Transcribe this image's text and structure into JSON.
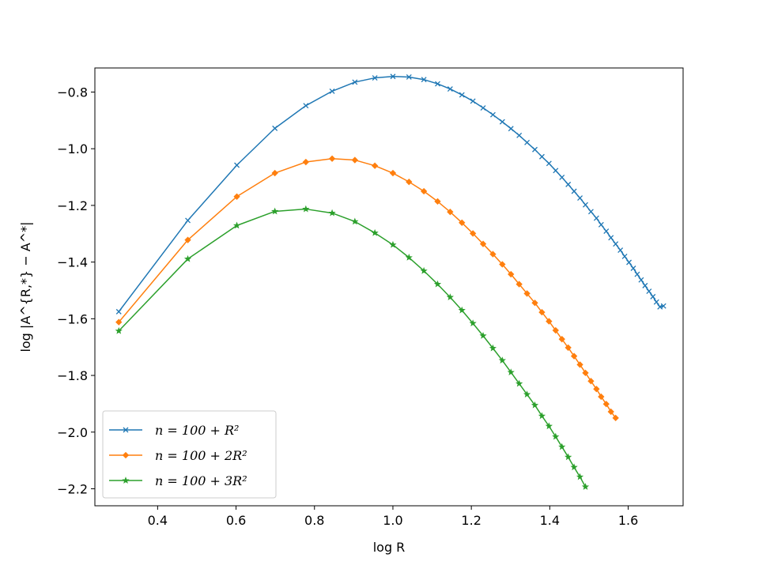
{
  "chart_data": {
    "type": "line",
    "xlabel": "log R",
    "ylabel": "log |A^{R,*} − A^*|",
    "xlim": [
      0.24,
      1.74
    ],
    "ylim": [
      -2.26,
      -0.715
    ],
    "xticks": [
      0.4,
      0.6,
      0.8,
      1.0,
      1.2,
      1.4,
      1.6
    ],
    "xtick_labels": [
      "0.4",
      "0.6",
      "0.8",
      "1.0",
      "1.2",
      "1.4",
      "1.6"
    ],
    "yticks": [
      -2.2,
      -2.0,
      -1.8,
      -1.6,
      -1.4,
      -1.2,
      -1.0,
      -0.8
    ],
    "ytick_labels": [
      "−2.2",
      "−2.0",
      "−1.8",
      "−1.6",
      "−1.4",
      "−1.2",
      "−1.0",
      "−0.8"
    ],
    "grid": false,
    "legend_position": "lower-left",
    "series": [
      {
        "name": "n = 100 + R²",
        "color": "#1f77b4",
        "marker": "x",
        "x": [
          0.301,
          0.477,
          0.602,
          0.699,
          0.778,
          0.845,
          0.903,
          0.954,
          1.0,
          1.041,
          1.079,
          1.114,
          1.146,
          1.176,
          1.204,
          1.23,
          1.255,
          1.279,
          1.301,
          1.322,
          1.342,
          1.362,
          1.38,
          1.398,
          1.415,
          1.431,
          1.447,
          1.462,
          1.477,
          1.491,
          1.505,
          1.519,
          1.531,
          1.544,
          1.556,
          1.568,
          1.58,
          1.591,
          1.602,
          1.613,
          1.623,
          1.633,
          1.643,
          1.653,
          1.663,
          1.672,
          1.681,
          1.69
        ],
        "y": [
          -1.575,
          -1.253,
          -1.058,
          -0.928,
          -0.848,
          -0.797,
          -0.765,
          -0.75,
          -0.745,
          -0.747,
          -0.756,
          -0.771,
          -0.789,
          -0.81,
          -0.832,
          -0.856,
          -0.88,
          -0.905,
          -0.929,
          -0.953,
          -0.978,
          -1.003,
          -1.028,
          -1.052,
          -1.077,
          -1.101,
          -1.126,
          -1.15,
          -1.174,
          -1.198,
          -1.222,
          -1.245,
          -1.268,
          -1.291,
          -1.314,
          -1.336,
          -1.358,
          -1.38,
          -1.401,
          -1.422,
          -1.443,
          -1.463,
          -1.483,
          -1.503,
          -1.522,
          -1.541,
          -1.558,
          -1.555
        ]
      },
      {
        "name": "n = 100 + 2R²",
        "color": "#ff7f0e",
        "marker": "D",
        "x": [
          0.301,
          0.477,
          0.602,
          0.699,
          0.778,
          0.845,
          0.903,
          0.954,
          1.0,
          1.041,
          1.079,
          1.114,
          1.146,
          1.176,
          1.204,
          1.23,
          1.255,
          1.279,
          1.301,
          1.322,
          1.342,
          1.362,
          1.38,
          1.398,
          1.415,
          1.431,
          1.447,
          1.462,
          1.477,
          1.491,
          1.505,
          1.519,
          1.531,
          1.544,
          1.556,
          1.568
        ],
        "y": [
          -1.612,
          -1.322,
          -1.169,
          -1.086,
          -1.047,
          -1.035,
          -1.04,
          -1.06,
          -1.086,
          -1.117,
          -1.15,
          -1.186,
          -1.223,
          -1.261,
          -1.299,
          -1.336,
          -1.372,
          -1.408,
          -1.443,
          -1.478,
          -1.511,
          -1.544,
          -1.577,
          -1.609,
          -1.641,
          -1.672,
          -1.702,
          -1.732,
          -1.762,
          -1.791,
          -1.82,
          -1.848,
          -1.875,
          -1.901,
          -1.928,
          -1.95
        ]
      },
      {
        "name": "n = 100 + 3R²",
        "color": "#2ca02c",
        "marker": "*",
        "x": [
          0.301,
          0.477,
          0.602,
          0.699,
          0.778,
          0.845,
          0.903,
          0.954,
          1.0,
          1.041,
          1.079,
          1.114,
          1.146,
          1.176,
          1.204,
          1.23,
          1.255,
          1.279,
          1.301,
          1.322,
          1.342,
          1.362,
          1.38,
          1.398,
          1.415,
          1.431,
          1.447,
          1.462,
          1.477,
          1.491
        ],
        "y": [
          -1.643,
          -1.389,
          -1.271,
          -1.221,
          -1.213,
          -1.227,
          -1.257,
          -1.297,
          -1.339,
          -1.384,
          -1.431,
          -1.478,
          -1.524,
          -1.57,
          -1.616,
          -1.66,
          -1.704,
          -1.747,
          -1.789,
          -1.829,
          -1.867,
          -1.905,
          -1.943,
          -1.979,
          -2.016,
          -2.052,
          -2.088,
          -2.124,
          -2.158,
          -2.193
        ]
      }
    ]
  }
}
